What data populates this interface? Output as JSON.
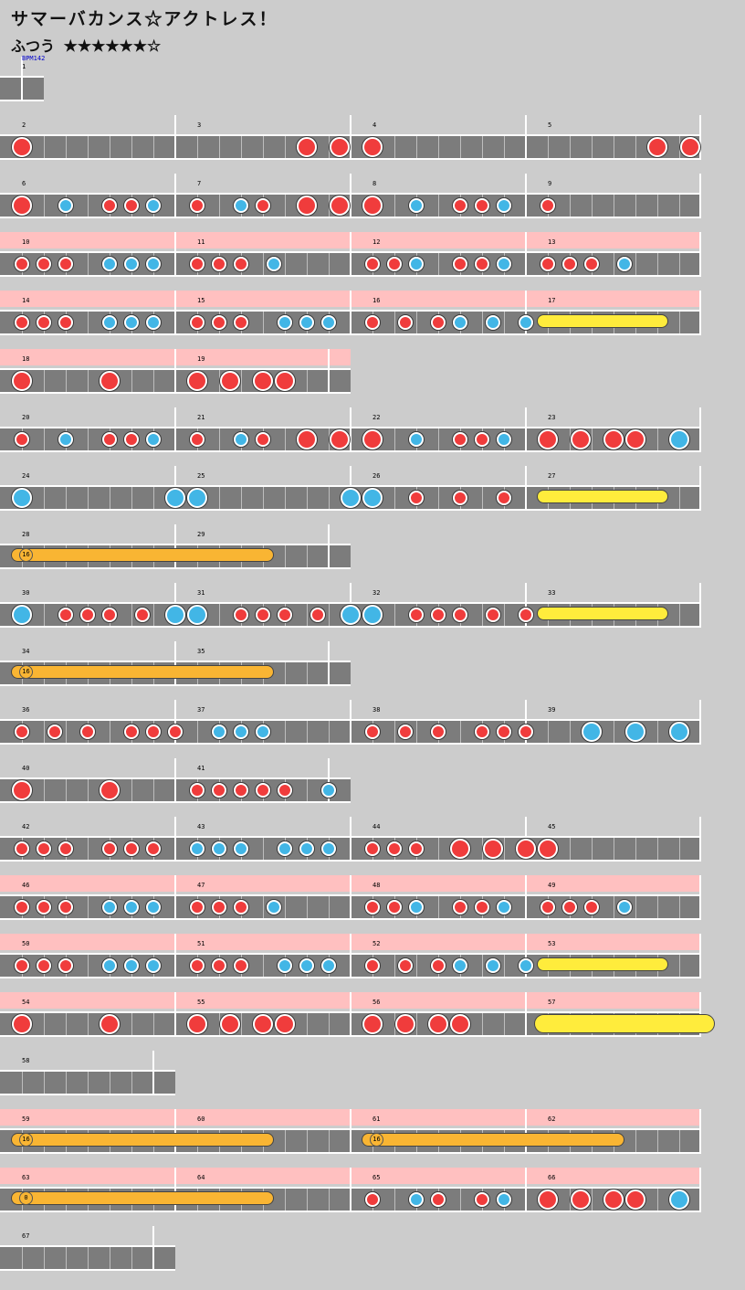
{
  "song_title": "サマーバカンス☆アクトレス！",
  "course": "ふつう",
  "stars": "★★★★★★☆",
  "bpm_label": "BPM142",
  "colors": {
    "don": "#f03c3c",
    "ka": "#42b6e6",
    "drumroll": "#ffec3c",
    "balloon": "#f9b533",
    "gogo": "#ffc0c0"
  },
  "rows": [
    {
      "top": 62,
      "gogo": false,
      "measures": [
        {
          "n": "1",
          "beats": 2
        }
      ],
      "notes": [],
      "rolls": [],
      "bpm": true
    },
    {
      "top": 126,
      "gogo": false,
      "measures": [
        {
          "n": "2",
          "beats": 8
        },
        {
          "n": "3",
          "beats": 8
        },
        {
          "n": "4",
          "beats": 8
        },
        {
          "n": "5",
          "beats": 8
        }
      ],
      "notes": [
        [
          0,
          "D"
        ],
        [
          13,
          "D"
        ],
        [
          14.5,
          "D"
        ],
        [
          16,
          "D"
        ],
        [
          29,
          "D"
        ],
        [
          30.5,
          "D"
        ]
      ],
      "rolls": []
    },
    {
      "top": 190,
      "gogo": false,
      "measures": [
        {
          "n": "6",
          "beats": 8
        },
        {
          "n": "7",
          "beats": 8
        },
        {
          "n": "8",
          "beats": 8
        },
        {
          "n": "9",
          "beats": 8
        }
      ],
      "notes": [
        [
          0,
          "D"
        ],
        [
          2,
          "k"
        ],
        [
          4,
          "d"
        ],
        [
          5,
          "d"
        ],
        [
          6,
          "k"
        ],
        [
          8,
          "d"
        ],
        [
          10,
          "k"
        ],
        [
          11,
          "d"
        ],
        [
          13,
          "D"
        ],
        [
          14.5,
          "D"
        ],
        [
          16,
          "D"
        ],
        [
          18,
          "k"
        ],
        [
          20,
          "d"
        ],
        [
          21,
          "d"
        ],
        [
          22,
          "k"
        ],
        [
          24,
          "d"
        ]
      ],
      "rolls": []
    },
    {
      "top": 254,
      "gogo": true,
      "measures": [
        {
          "n": "10",
          "beats": 8
        },
        {
          "n": "11",
          "beats": 8
        },
        {
          "n": "12",
          "beats": 8
        },
        {
          "n": "13",
          "beats": 8
        }
      ],
      "notes": [
        [
          0,
          "d"
        ],
        [
          1,
          "d"
        ],
        [
          2,
          "d"
        ],
        [
          4,
          "k"
        ],
        [
          5,
          "k"
        ],
        [
          6,
          "k"
        ],
        [
          8,
          "d"
        ],
        [
          9,
          "d"
        ],
        [
          10,
          "d"
        ],
        [
          11.5,
          "k"
        ],
        [
          16,
          "d"
        ],
        [
          17,
          "d"
        ],
        [
          18,
          "k"
        ],
        [
          20,
          "d"
        ],
        [
          21,
          "d"
        ],
        [
          22,
          "k"
        ],
        [
          24,
          "d"
        ],
        [
          25,
          "d"
        ],
        [
          26,
          "d"
        ],
        [
          27.5,
          "k"
        ]
      ],
      "rolls": []
    },
    {
      "top": 318,
      "gogo": true,
      "measures": [
        {
          "n": "14",
          "beats": 8
        },
        {
          "n": "15",
          "beats": 8
        },
        {
          "n": "16",
          "beats": 8
        },
        {
          "n": "17",
          "beats": 8
        }
      ],
      "notes": [
        [
          0,
          "d"
        ],
        [
          1,
          "d"
        ],
        [
          2,
          "d"
        ],
        [
          4,
          "k"
        ],
        [
          5,
          "k"
        ],
        [
          6,
          "k"
        ],
        [
          8,
          "d"
        ],
        [
          9,
          "d"
        ],
        [
          10,
          "d"
        ],
        [
          12,
          "k"
        ],
        [
          13,
          "k"
        ],
        [
          14,
          "k"
        ],
        [
          16,
          "d"
        ],
        [
          17.5,
          "d"
        ],
        [
          19,
          "d"
        ],
        [
          20,
          "k"
        ],
        [
          21.5,
          "k"
        ],
        [
          23,
          "k"
        ]
      ],
      "rolls": [
        {
          "s": 24,
          "e": 30,
          "t": "yellow"
        }
      ]
    },
    {
      "top": 382,
      "gogo": true,
      "measures": [
        {
          "n": "18",
          "beats": 8
        },
        {
          "n": "19",
          "beats": 8
        }
      ],
      "notes": [
        [
          0,
          "D"
        ],
        [
          4,
          "D"
        ],
        [
          8,
          "D"
        ],
        [
          9.5,
          "D"
        ],
        [
          11,
          "D"
        ],
        [
          12,
          "D"
        ]
      ],
      "rolls": []
    },
    {
      "top": 446,
      "gogo": false,
      "measures": [
        {
          "n": "20",
          "beats": 8
        },
        {
          "n": "21",
          "beats": 8
        },
        {
          "n": "22",
          "beats": 8
        },
        {
          "n": "23",
          "beats": 8
        }
      ],
      "notes": [
        [
          0,
          "d"
        ],
        [
          2,
          "k"
        ],
        [
          4,
          "d"
        ],
        [
          5,
          "d"
        ],
        [
          6,
          "k"
        ],
        [
          8,
          "d"
        ],
        [
          10,
          "k"
        ],
        [
          11,
          "d"
        ],
        [
          13,
          "D"
        ],
        [
          14.5,
          "D"
        ],
        [
          16,
          "D"
        ],
        [
          18,
          "k"
        ],
        [
          20,
          "d"
        ],
        [
          21,
          "d"
        ],
        [
          22,
          "k"
        ],
        [
          24,
          "D"
        ],
        [
          25.5,
          "D"
        ],
        [
          27,
          "D"
        ],
        [
          28,
          "D"
        ],
        [
          30,
          "K"
        ]
      ],
      "rolls": []
    },
    {
      "top": 510,
      "gogo": false,
      "measures": [
        {
          "n": "24",
          "beats": 8
        },
        {
          "n": "25",
          "beats": 8
        },
        {
          "n": "26",
          "beats": 8
        },
        {
          "n": "27",
          "beats": 8
        }
      ],
      "notes": [
        [
          0,
          "K"
        ],
        [
          7,
          "K"
        ],
        [
          8,
          "K"
        ],
        [
          15,
          "K"
        ],
        [
          16,
          "K"
        ],
        [
          18,
          "d"
        ],
        [
          20,
          "d"
        ],
        [
          22,
          "d"
        ]
      ],
      "rolls": [
        {
          "s": 24,
          "e": 30,
          "t": "yellow"
        }
      ]
    },
    {
      "top": 574,
      "gogo": false,
      "measures": [
        {
          "n": "28",
          "beats": 8
        },
        {
          "n": "29",
          "beats": 8
        }
      ],
      "notes": [],
      "rolls": [
        {
          "s": 0,
          "e": 12,
          "t": "balloon",
          "count": "16"
        }
      ]
    },
    {
      "top": 638,
      "gogo": false,
      "measures": [
        {
          "n": "30",
          "beats": 8
        },
        {
          "n": "31",
          "beats": 8
        },
        {
          "n": "32",
          "beats": 8
        },
        {
          "n": "33",
          "beats": 8
        }
      ],
      "notes": [
        [
          0,
          "K"
        ],
        [
          2,
          "d"
        ],
        [
          3,
          "d"
        ],
        [
          4,
          "d"
        ],
        [
          5.5,
          "d"
        ],
        [
          7,
          "K"
        ],
        [
          8,
          "K"
        ],
        [
          10,
          "d"
        ],
        [
          11,
          "d"
        ],
        [
          12,
          "d"
        ],
        [
          13.5,
          "d"
        ],
        [
          15,
          "K"
        ],
        [
          16,
          "K"
        ],
        [
          18,
          "d"
        ],
        [
          19,
          "d"
        ],
        [
          20,
          "d"
        ],
        [
          21.5,
          "d"
        ],
        [
          23,
          "d"
        ]
      ],
      "rolls": [
        {
          "s": 24,
          "e": 30,
          "t": "yellow"
        }
      ]
    },
    {
      "top": 702,
      "gogo": false,
      "measures": [
        {
          "n": "34",
          "beats": 8
        },
        {
          "n": "35",
          "beats": 8
        }
      ],
      "notes": [],
      "rolls": [
        {
          "s": 0,
          "e": 12,
          "t": "balloon",
          "count": "16"
        }
      ]
    },
    {
      "top": 766,
      "gogo": false,
      "measures": [
        {
          "n": "36",
          "beats": 8
        },
        {
          "n": "37",
          "beats": 8
        },
        {
          "n": "38",
          "beats": 8
        },
        {
          "n": "39",
          "beats": 8
        }
      ],
      "notes": [
        [
          0,
          "d"
        ],
        [
          1.5,
          "d"
        ],
        [
          3,
          "d"
        ],
        [
          5,
          "d"
        ],
        [
          6,
          "d"
        ],
        [
          7,
          "d"
        ],
        [
          9,
          "k"
        ],
        [
          10,
          "k"
        ],
        [
          11,
          "k"
        ],
        [
          16,
          "d"
        ],
        [
          17.5,
          "d"
        ],
        [
          19,
          "d"
        ],
        [
          21,
          "d"
        ],
        [
          22,
          "d"
        ],
        [
          23,
          "d"
        ],
        [
          26,
          "K"
        ],
        [
          28,
          "K"
        ],
        [
          30,
          "K"
        ]
      ],
      "rolls": []
    },
    {
      "top": 830,
      "gogo": false,
      "measures": [
        {
          "n": "40",
          "beats": 8
        },
        {
          "n": "41",
          "beats": 8
        }
      ],
      "notes": [
        [
          0,
          "D"
        ],
        [
          4,
          "D"
        ],
        [
          8,
          "d"
        ],
        [
          9,
          "d"
        ],
        [
          10,
          "d"
        ],
        [
          11,
          "d"
        ],
        [
          12,
          "d"
        ],
        [
          14,
          "k"
        ]
      ],
      "rolls": []
    },
    {
      "top": 894,
      "gogo": false,
      "measures": [
        {
          "n": "42",
          "beats": 8
        },
        {
          "n": "43",
          "beats": 8
        },
        {
          "n": "44",
          "beats": 8
        },
        {
          "n": "45",
          "beats": 8
        }
      ],
      "notes": [
        [
          0,
          "d"
        ],
        [
          1,
          "d"
        ],
        [
          2,
          "d"
        ],
        [
          4,
          "d"
        ],
        [
          5,
          "d"
        ],
        [
          6,
          "d"
        ],
        [
          8,
          "k"
        ],
        [
          9,
          "k"
        ],
        [
          10,
          "k"
        ],
        [
          12,
          "k"
        ],
        [
          13,
          "k"
        ],
        [
          14,
          "k"
        ],
        [
          16,
          "d"
        ],
        [
          17,
          "d"
        ],
        [
          18,
          "d"
        ],
        [
          20,
          "D"
        ],
        [
          21.5,
          "D"
        ],
        [
          23,
          "D"
        ],
        [
          24,
          "D"
        ]
      ],
      "rolls": []
    },
    {
      "top": 958,
      "gogo": true,
      "measures": [
        {
          "n": "46",
          "beats": 8
        },
        {
          "n": "47",
          "beats": 8
        },
        {
          "n": "48",
          "beats": 8
        },
        {
          "n": "49",
          "beats": 8
        }
      ],
      "notes": [
        [
          0,
          "d"
        ],
        [
          1,
          "d"
        ],
        [
          2,
          "d"
        ],
        [
          4,
          "k"
        ],
        [
          5,
          "k"
        ],
        [
          6,
          "k"
        ],
        [
          8,
          "d"
        ],
        [
          9,
          "d"
        ],
        [
          10,
          "d"
        ],
        [
          11.5,
          "k"
        ],
        [
          16,
          "d"
        ],
        [
          17,
          "d"
        ],
        [
          18,
          "k"
        ],
        [
          20,
          "d"
        ],
        [
          21,
          "d"
        ],
        [
          22,
          "k"
        ],
        [
          24,
          "d"
        ],
        [
          25,
          "d"
        ],
        [
          26,
          "d"
        ],
        [
          27.5,
          "k"
        ]
      ],
      "rolls": []
    },
    {
      "top": 1022,
      "gogo": true,
      "measures": [
        {
          "n": "50",
          "beats": 8
        },
        {
          "n": "51",
          "beats": 8
        },
        {
          "n": "52",
          "beats": 8
        },
        {
          "n": "53",
          "beats": 8
        }
      ],
      "notes": [
        [
          0,
          "d"
        ],
        [
          1,
          "d"
        ],
        [
          2,
          "d"
        ],
        [
          4,
          "k"
        ],
        [
          5,
          "k"
        ],
        [
          6,
          "k"
        ],
        [
          8,
          "d"
        ],
        [
          9,
          "d"
        ],
        [
          10,
          "d"
        ],
        [
          12,
          "k"
        ],
        [
          13,
          "k"
        ],
        [
          14,
          "k"
        ],
        [
          16,
          "d"
        ],
        [
          17.5,
          "d"
        ],
        [
          19,
          "d"
        ],
        [
          20,
          "k"
        ],
        [
          21.5,
          "k"
        ],
        [
          23,
          "k"
        ]
      ],
      "rolls": [
        {
          "s": 24,
          "e": 30,
          "t": "yellow"
        }
      ]
    },
    {
      "top": 1086,
      "gogo": true,
      "measures": [
        {
          "n": "54",
          "beats": 8
        },
        {
          "n": "55",
          "beats": 8
        },
        {
          "n": "56",
          "beats": 8
        },
        {
          "n": "57",
          "beats": 8
        }
      ],
      "notes": [
        [
          0,
          "D"
        ],
        [
          4,
          "D"
        ],
        [
          8,
          "D"
        ],
        [
          9.5,
          "D"
        ],
        [
          11,
          "D"
        ],
        [
          12,
          "D"
        ],
        [
          16,
          "D"
        ],
        [
          17.5,
          "D"
        ],
        [
          19,
          "D"
        ],
        [
          20,
          "D"
        ]
      ],
      "rolls": [
        {
          "s": 24,
          "e": 32,
          "t": "yellow",
          "big": true
        }
      ]
    },
    {
      "top": 1150,
      "gogo": false,
      "measures": [
        {
          "n": "58",
          "beats": 8
        }
      ],
      "notes": [],
      "rolls": []
    },
    {
      "top": 1214,
      "gogo": true,
      "measures": [
        {
          "n": "59",
          "beats": 8
        },
        {
          "n": "60",
          "beats": 8
        },
        {
          "n": "61",
          "beats": 8
        },
        {
          "n": "62",
          "beats": 8
        }
      ],
      "notes": [],
      "rolls": [
        {
          "s": 0,
          "e": 12,
          "t": "balloon",
          "count": "16"
        },
        {
          "s": 16,
          "e": 28,
          "t": "balloon",
          "count": "16"
        }
      ]
    },
    {
      "top": 1278,
      "gogo": true,
      "measures": [
        {
          "n": "63",
          "beats": 8
        },
        {
          "n": "64",
          "beats": 8
        },
        {
          "n": "65",
          "beats": 8
        },
        {
          "n": "66",
          "beats": 8
        }
      ],
      "notes": [
        [
          16,
          "d"
        ],
        [
          18,
          "k"
        ],
        [
          19,
          "d"
        ],
        [
          21,
          "d"
        ],
        [
          22,
          "k"
        ],
        [
          24,
          "D"
        ],
        [
          25.5,
          "D"
        ],
        [
          27,
          "D"
        ],
        [
          28,
          "D"
        ],
        [
          30,
          "K"
        ]
      ],
      "rolls": [
        {
          "s": 0,
          "e": 12,
          "t": "balloon",
          "count": "0"
        }
      ]
    },
    {
      "top": 1342,
      "gogo": false,
      "measures": [
        {
          "n": "67",
          "beats": 8
        }
      ],
      "notes": [],
      "rolls": []
    }
  ]
}
